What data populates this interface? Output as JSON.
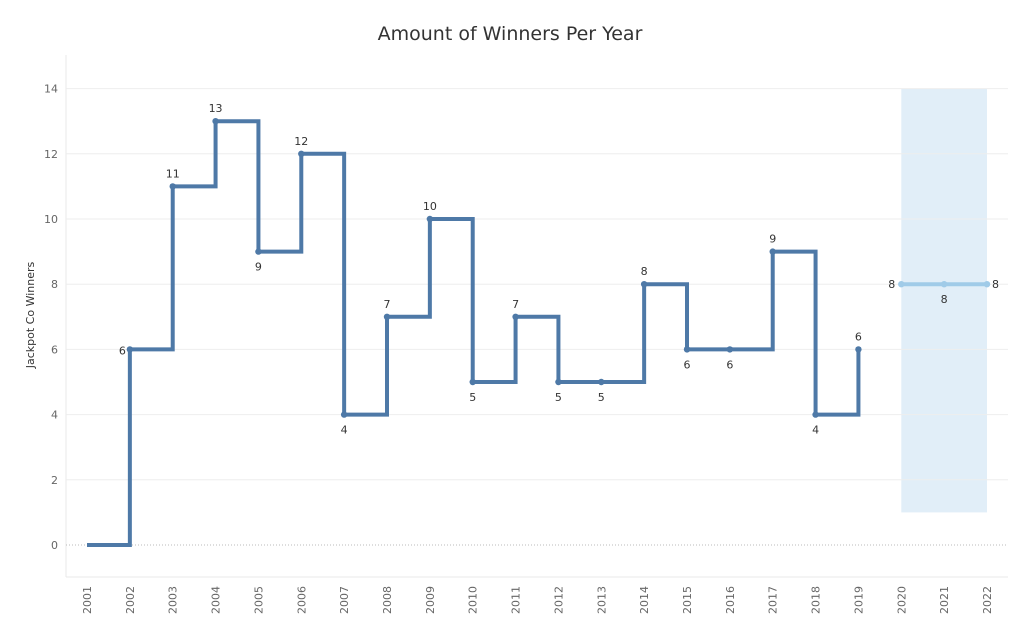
{
  "chart_data": {
    "type": "line",
    "line_shape": "step",
    "title": "Amount of Winners Per Year",
    "xlabel": "",
    "ylabel": "Jackpot Co Winners",
    "ylim": [
      -1,
      15
    ],
    "yticks": [
      0,
      2,
      4,
      6,
      8,
      10,
      12,
      14
    ],
    "x": [
      "2001",
      "2002",
      "2003",
      "2004",
      "2005",
      "2006",
      "2007",
      "2008",
      "2009",
      "2010",
      "2011",
      "2012",
      "2013",
      "2014",
      "2015",
      "2016",
      "2017",
      "2018",
      "2019",
      "2020",
      "2021",
      "2022"
    ],
    "grid": true,
    "legend": "none",
    "series": [
      {
        "x": [
          "2001",
          "2002",
          "2003",
          "2004",
          "2005",
          "2006",
          "2007",
          "2008",
          "2009",
          "2010",
          "2011",
          "2012",
          "2013",
          "2014",
          "2015",
          "2016",
          "2017",
          "2018",
          "2019"
        ],
        "values": [
          0,
          6,
          11,
          13,
          9,
          12,
          4,
          7,
          10,
          5,
          7,
          5,
          5,
          8,
          6,
          6,
          9,
          4,
          6
        ],
        "labels": [
          null,
          "6",
          "11",
          "13",
          "9",
          "12",
          "4",
          "7",
          "10",
          "5",
          "7",
          "5",
          "5",
          "8",
          "6",
          "6",
          "9",
          "4",
          "6"
        ],
        "color": "#4e79a7"
      },
      {
        "x": [
          "2020",
          "2021",
          "2022"
        ],
        "values": [
          8,
          8,
          8
        ],
        "labels": [
          "8",
          "8",
          "8"
        ],
        "color": "#a0cbe8"
      }
    ],
    "highlight_band": {
      "x_from": "2020",
      "x_to": "2022",
      "y_from": 1,
      "y_to": 14,
      "color": "#e1eef8"
    }
  }
}
